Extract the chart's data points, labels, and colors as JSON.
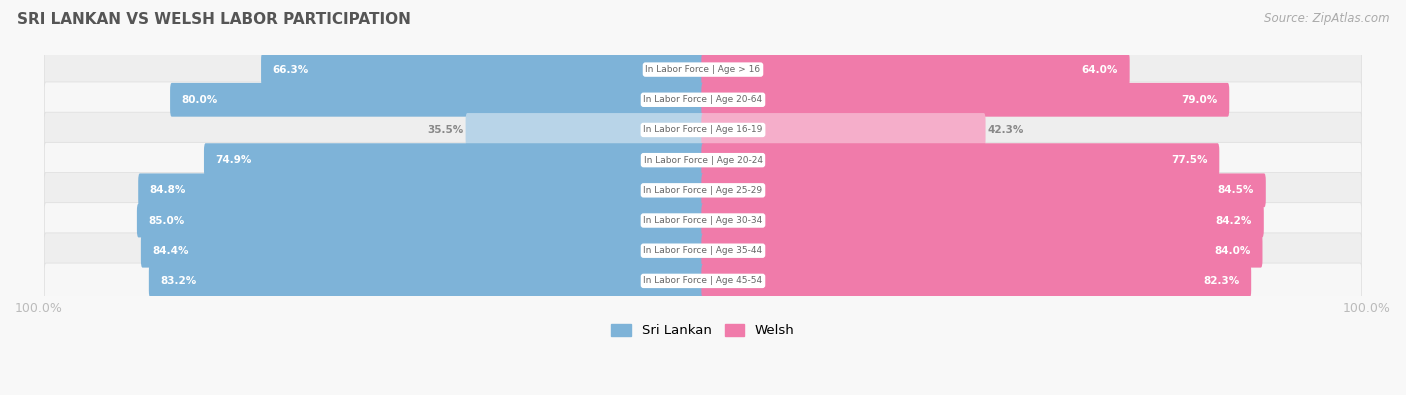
{
  "title": "SRI LANKAN VS WELSH LABOR PARTICIPATION",
  "source": "Source: ZipAtlas.com",
  "categories": [
    "In Labor Force | Age > 16",
    "In Labor Force | Age 20-64",
    "In Labor Force | Age 16-19",
    "In Labor Force | Age 20-24",
    "In Labor Force | Age 25-29",
    "In Labor Force | Age 30-34",
    "In Labor Force | Age 35-44",
    "In Labor Force | Age 45-54"
  ],
  "sri_lankan": [
    66.3,
    80.0,
    35.5,
    74.9,
    84.8,
    85.0,
    84.4,
    83.2
  ],
  "welsh": [
    64.0,
    79.0,
    42.3,
    77.5,
    84.5,
    84.2,
    84.0,
    82.3
  ],
  "light_rows": [
    2
  ],
  "sri_lankan_color": "#7EB3D8",
  "sri_lankan_color_light": "#B8D4E8",
  "welsh_color": "#F07BAA",
  "welsh_color_light": "#F5AECA",
  "row_bg_even": "#EEEEEE",
  "row_bg_odd": "#F7F7F7",
  "center_label_color": "#666666",
  "title_color": "#555555",
  "axis_label_color": "#BBBBBB",
  "figsize": [
    14.06,
    3.95
  ],
  "dpi": 100,
  "legend_labels": [
    "Sri Lankan",
    "Welsh"
  ]
}
